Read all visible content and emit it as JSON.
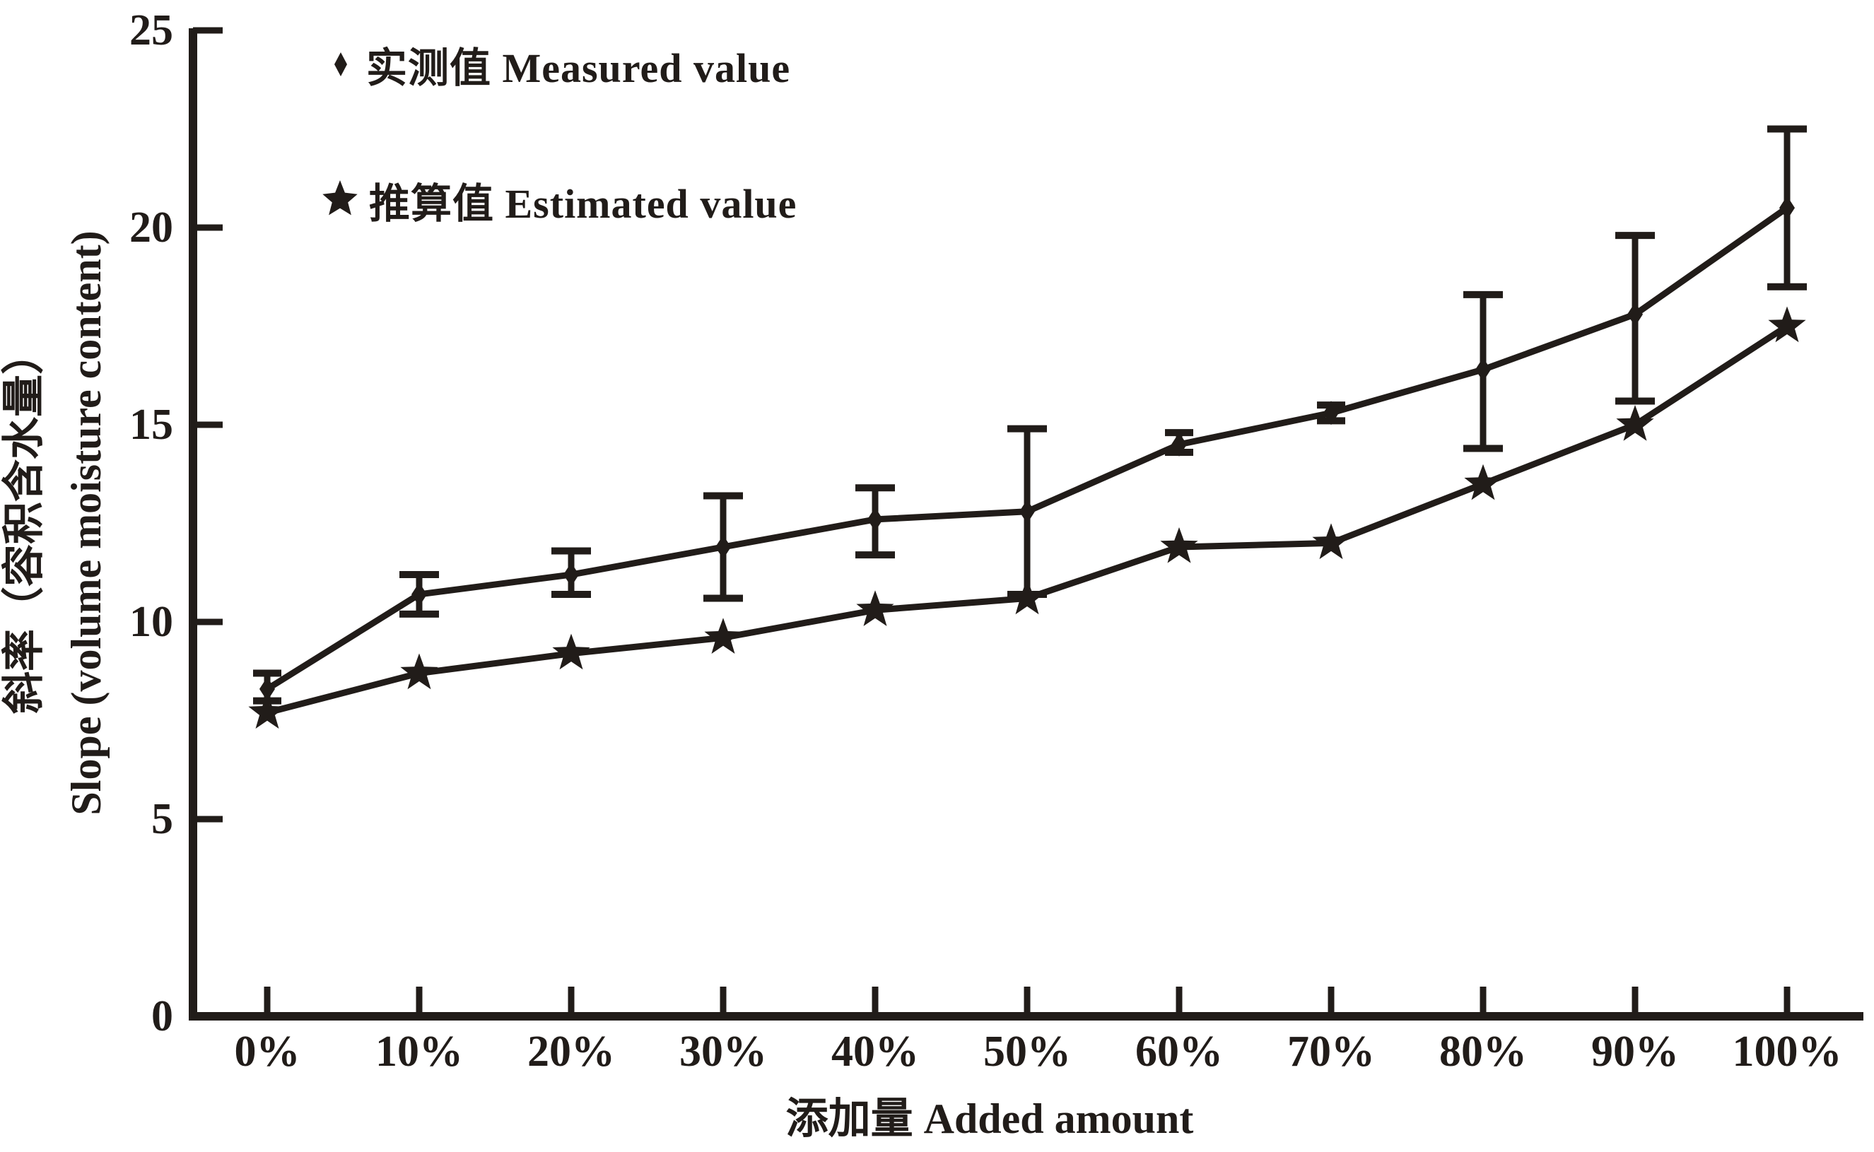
{
  "figure": {
    "background": "#ffffff",
    "ink_color": "#211c19"
  },
  "legend": {
    "measured_label": "实测值 Measured value",
    "estimated_label": "推算值 Estimated value"
  },
  "axes": {
    "x_title": "添加量 Added amount",
    "y_title_cn": "斜率（容积含水量）",
    "y_title_en": "Slope (volume moisture content)"
  },
  "chart_data": {
    "type": "line",
    "categories": [
      "0%",
      "10%",
      "20%",
      "30%",
      "40%",
      "50%",
      "60%",
      "70%",
      "80%",
      "90%",
      "100%"
    ],
    "series": [
      {
        "name": "实测值 Measured value",
        "marker": "diamond",
        "values": [
          8.3,
          10.7,
          11.2,
          11.9,
          12.6,
          12.8,
          14.5,
          15.3,
          16.4,
          17.8,
          20.5
        ],
        "error_low": [
          8.0,
          10.2,
          10.7,
          10.6,
          11.7,
          10.7,
          14.3,
          15.1,
          14.4,
          15.6,
          18.5
        ],
        "error_high": [
          8.7,
          11.2,
          11.8,
          13.2,
          13.4,
          14.9,
          14.8,
          15.5,
          18.3,
          19.8,
          22.5
        ]
      },
      {
        "name": "推算值 Estimated value",
        "marker": "star",
        "values": [
          7.7,
          8.7,
          9.2,
          9.6,
          10.3,
          10.6,
          11.9,
          12.0,
          13.5,
          15.0,
          17.5
        ]
      }
    ],
    "xlabel": "添加量 Added amount",
    "ylabel": "斜率（容积含水量） Slope (volume moisture content)",
    "ylim": [
      0,
      25
    ],
    "yticks": [
      0,
      5,
      10,
      15,
      20,
      25
    ],
    "grid": false,
    "legend_position": "top-left-inside"
  }
}
